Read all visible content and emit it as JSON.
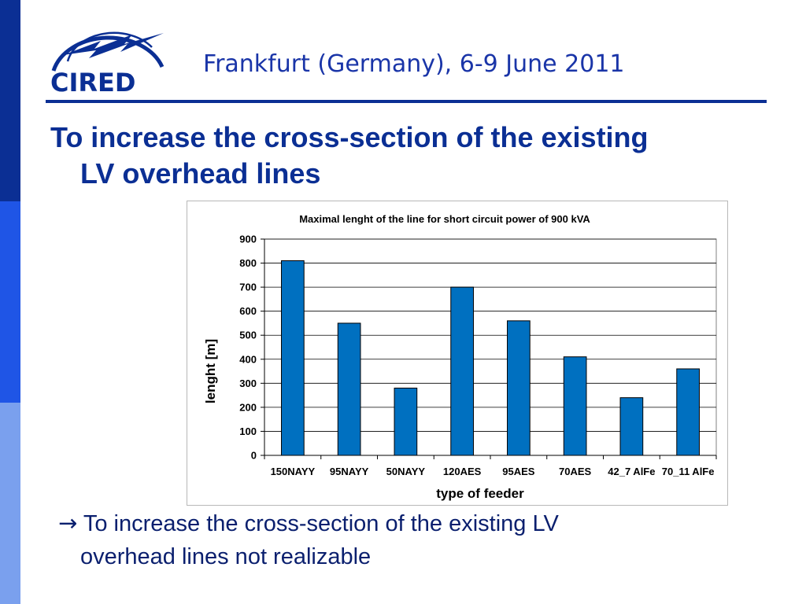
{
  "logo": {
    "text": "CIRED"
  },
  "header": {
    "title": "Frankfurt (Germany), 6-9 June 2011"
  },
  "slide": {
    "title_line1": "To increase the cross-section of the existing",
    "title_line2": "LV overhead lines"
  },
  "bullet": {
    "arrow": "→",
    "line1": "To increase the cross-section of the existing LV",
    "line2": "overhead lines not realizable"
  },
  "colors": {
    "bar": "#0070c0",
    "bar_stroke": "#000000",
    "title_blue": "#0b2f94",
    "header_blue": "#1a35a8"
  },
  "chart_data": {
    "type": "bar",
    "title": "Maximal lenght of the line for short circuit power of 900 kVA",
    "xlabel": "type of feeder",
    "ylabel": "lenght  [m]",
    "categories": [
      "150NAYY",
      "95NAYY",
      "50NAYY",
      "120AES",
      "95AES",
      "70AES",
      "42_7 AlFe",
      "70_11 AlFe"
    ],
    "values": [
      810,
      550,
      280,
      700,
      560,
      410,
      240,
      360
    ],
    "ylim": [
      0,
      900
    ],
    "yticks": [
      0,
      100,
      200,
      300,
      400,
      500,
      600,
      700,
      800,
      900
    ],
    "grid": true,
    "legend": "none"
  }
}
